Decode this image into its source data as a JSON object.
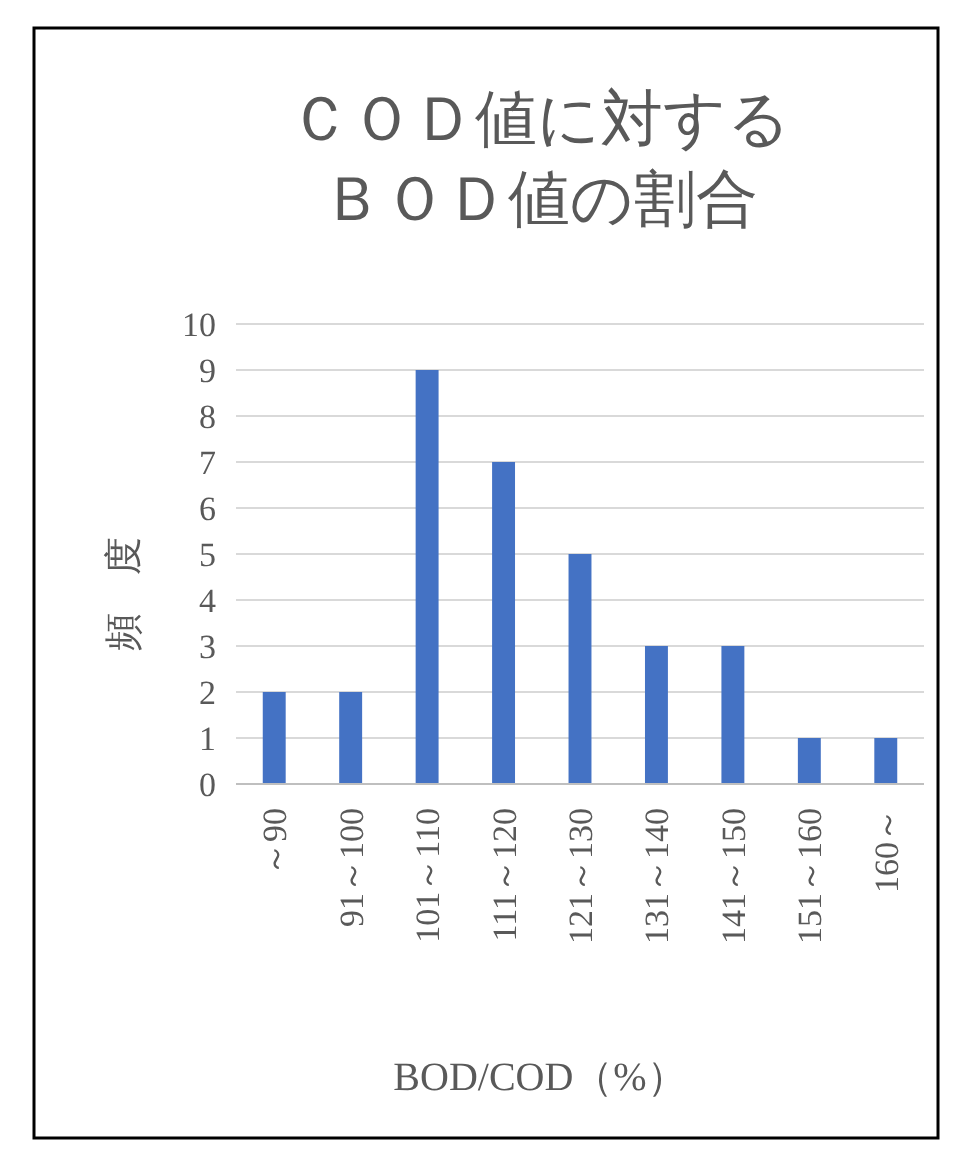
{
  "chart_data": {
    "type": "bar",
    "title": "ＣＯＤ値に対するＢＯＤ値の割合",
    "xlabel": "BOD/COD（%）",
    "ylabel": "頻　度",
    "categories": [
      "～90",
      "91～100",
      "101～110",
      "111～120",
      "121～130",
      "131～140",
      "141～150",
      "151～160",
      "160～"
    ],
    "values": [
      2,
      2,
      9,
      7,
      5,
      3,
      3,
      1,
      1
    ],
    "color": "#4472c4",
    "ylim": [
      0,
      10
    ],
    "yticks": [
      0,
      1,
      2,
      3,
      4,
      5,
      6,
      7,
      8,
      9,
      10
    ],
    "grid": "y"
  }
}
